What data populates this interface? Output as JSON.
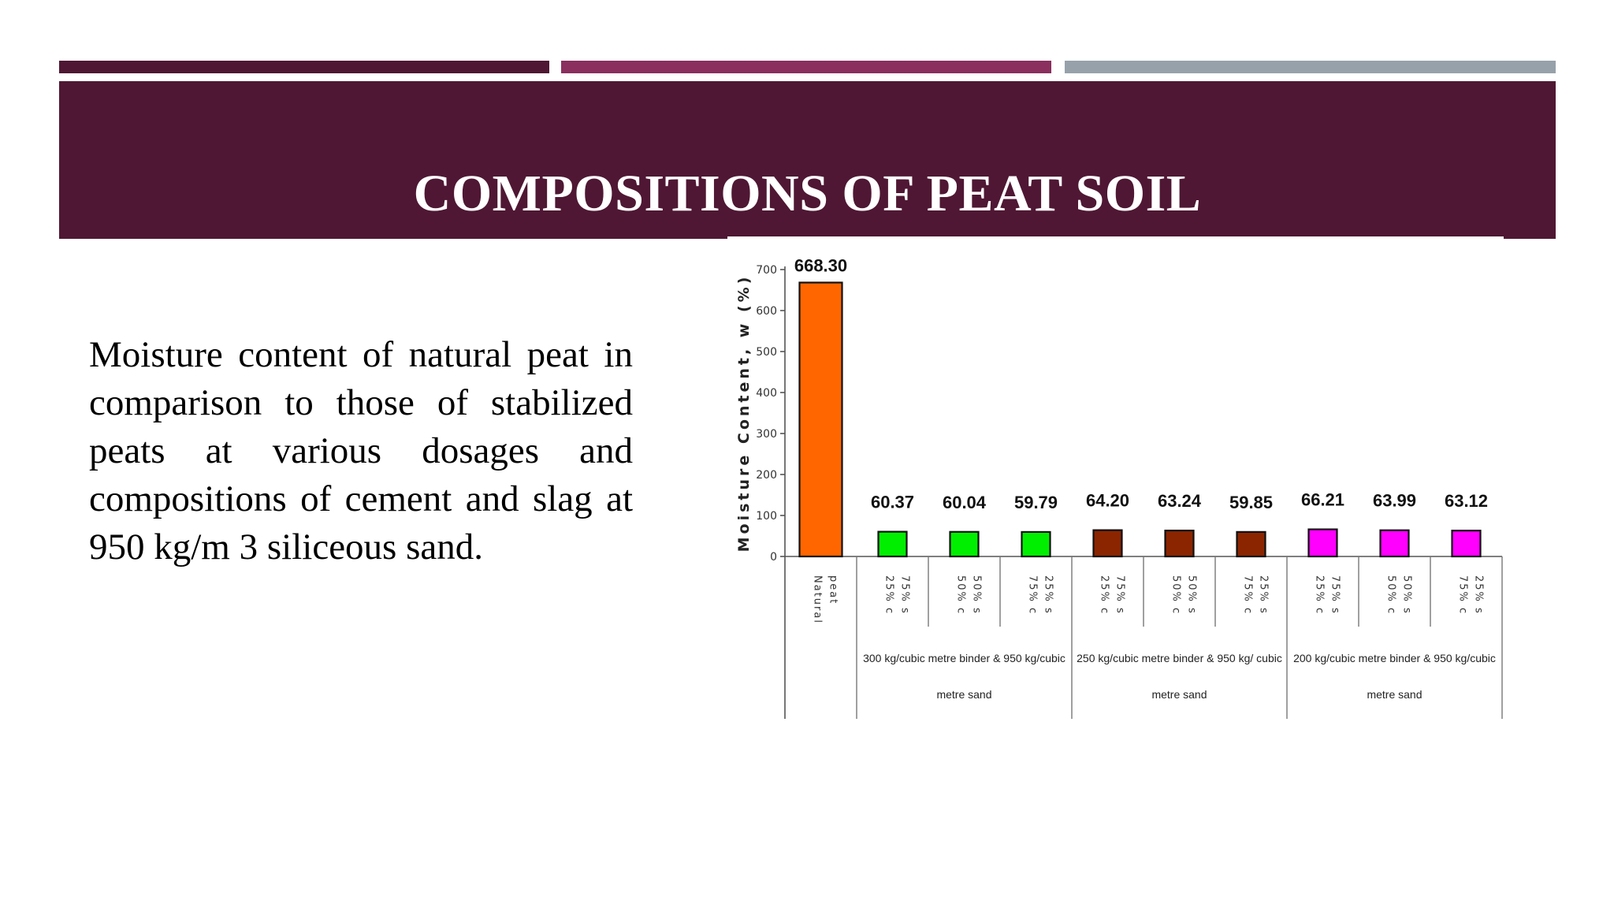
{
  "slide": {
    "title": "COMPOSITIONS OF PEAT SOIL",
    "body": "Moisture content of natural peat in comparison to those of stabilized peats at various dosages and compositions of cement and slag at 950 kg/m 3 siliceous sand."
  },
  "colors": {
    "accent_dark": "#4f1733",
    "accent_magenta": "#8a2f5e",
    "accent_gray": "#97a1a9",
    "banner": "#4f1733"
  },
  "chart_data": {
    "type": "bar",
    "ylabel": "Moisture Content, w (%)",
    "ylim": [
      0,
      700
    ],
    "yticks": [
      0,
      100,
      200,
      300,
      400,
      500,
      600,
      700
    ],
    "categories": [
      [
        "Natural",
        "peat"
      ],
      [
        "25% c",
        "75% s"
      ],
      [
        "50% c",
        "50% s"
      ],
      [
        "75% c",
        "25% s"
      ],
      [
        "25% c",
        "75% s"
      ],
      [
        "50% c",
        "50% s"
      ],
      [
        "75% c",
        "25% s"
      ],
      [
        "25% c",
        "75% s"
      ],
      [
        "50% c",
        "50% s"
      ],
      [
        "75% c",
        "25% s"
      ]
    ],
    "values": [
      668.3,
      60.37,
      60.04,
      59.79,
      64.2,
      63.24,
      59.85,
      66.21,
      63.99,
      63.12
    ],
    "value_labels": [
      "668.30",
      "60.37",
      "60.04",
      "59.79",
      "64.20",
      "63.24",
      "59.85",
      "66.21",
      "63.99",
      "63.12"
    ],
    "bar_colors": [
      "#ff6600",
      "#00ee00",
      "#00ee00",
      "#00ee00",
      "#8b2500",
      "#8b2500",
      "#8b2500",
      "#ff00ff",
      "#ff00ff",
      "#ff00ff"
    ],
    "groups": [
      {
        "line1": "300 kg/cubic metre binder & 950 kg/cubic",
        "line2": "metre sand"
      },
      {
        "line1": "250 kg/cubic metre binder & 950 kg/ cubic",
        "line2": "metre sand"
      },
      {
        "line1": "200 kg/cubic metre binder & 950 kg/cubic",
        "line2": "metre sand"
      }
    ],
    "grid": false,
    "legend": "none"
  }
}
